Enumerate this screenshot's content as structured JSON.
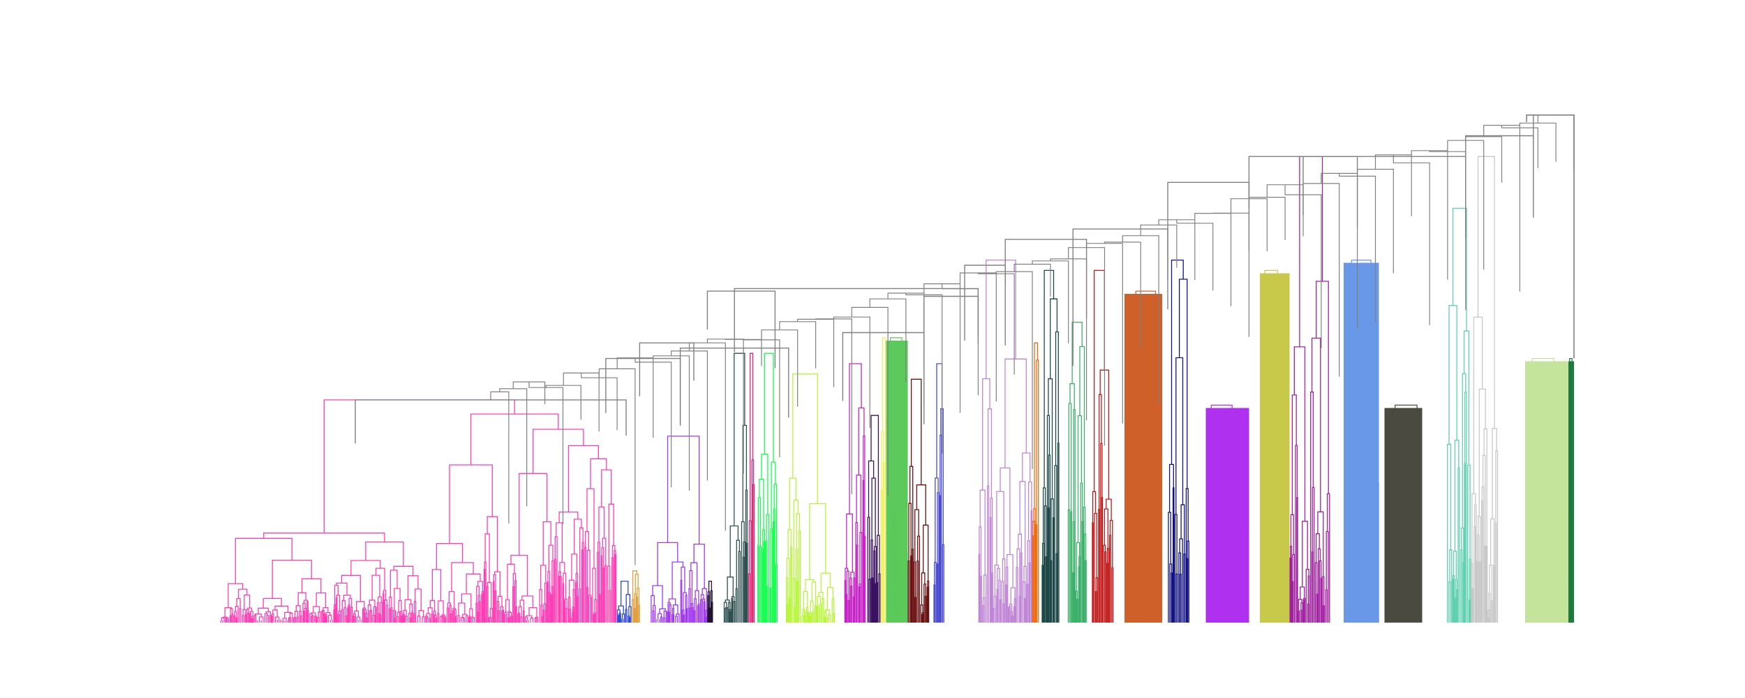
{
  "chart_data": {
    "type": "dendrogram",
    "title": "",
    "xlabel": "",
    "ylabel": "",
    "axes_visible": false,
    "grid": false,
    "leaf_count_estimate": 1200,
    "ylim": [
      0,
      1.0
    ],
    "root_height": 0.98,
    "link_color_default": "#808080",
    "clusters": [
      {
        "name": "cluster-01",
        "color": "#ff3eb5",
        "x_start": 0.0,
        "x_end": 0.293,
        "merge_height": 0.43,
        "style": "tree"
      },
      {
        "name": "cluster-02",
        "color": "#2f49d1",
        "x_start": 0.293,
        "x_end": 0.304,
        "merge_height": 0.08,
        "style": "tree"
      },
      {
        "name": "cluster-03",
        "color": "#e0a040",
        "x_start": 0.304,
        "x_end": 0.31,
        "merge_height": 0.1,
        "style": "tree"
      },
      {
        "name": "cluster-04",
        "color": "#a139f0",
        "x_start": 0.318,
        "x_end": 0.36,
        "merge_height": 0.36,
        "style": "tree"
      },
      {
        "name": "cluster-05",
        "color": "#20142e",
        "x_start": 0.36,
        "x_end": 0.364,
        "merge_height": 0.08,
        "style": "tree"
      },
      {
        "name": "cluster-06",
        "color": "#2f5050",
        "x_start": 0.372,
        "x_end": 0.39,
        "merge_height": 0.52,
        "style": "tree"
      },
      {
        "name": "cluster-07",
        "color": "#e01f70",
        "x_start": 0.39,
        "x_end": 0.395,
        "merge_height": 0.52,
        "style": "tree"
      },
      {
        "name": "cluster-08",
        "color": "#14ff4e",
        "x_start": 0.397,
        "x_end": 0.412,
        "merge_height": 0.52,
        "style": "tree"
      },
      {
        "name": "cluster-09",
        "color": "#b9f53c",
        "x_start": 0.418,
        "x_end": 0.454,
        "merge_height": 0.48,
        "style": "tree"
      },
      {
        "name": "cluster-10",
        "color": "#c624c6",
        "x_start": 0.461,
        "x_end": 0.477,
        "merge_height": 0.5,
        "style": "tree"
      },
      {
        "name": "cluster-11",
        "color": "#3a1060",
        "x_start": 0.478,
        "x_end": 0.488,
        "merge_height": 0.4,
        "style": "tree"
      },
      {
        "name": "cluster-12",
        "color": "#f0f05a",
        "x_start": 0.488,
        "x_end": 0.492,
        "merge_height": 0.55,
        "style": "tree"
      },
      {
        "name": "cluster-13",
        "color": "#5bc95b",
        "x_start": 0.492,
        "x_end": 0.508,
        "merge_height": 0.55,
        "style": "dense"
      },
      {
        "name": "cluster-14",
        "color": "#6b1010",
        "x_start": 0.508,
        "x_end": 0.524,
        "merge_height": 0.47,
        "style": "tree"
      },
      {
        "name": "cluster-15",
        "color": "#4a4ad0",
        "x_start": 0.527,
        "x_end": 0.535,
        "merge_height": 0.5,
        "style": "tree"
      },
      {
        "name": "cluster-16",
        "color": "#bf86d6",
        "x_start": 0.56,
        "x_end": 0.6,
        "merge_height": 0.7,
        "style": "tree"
      },
      {
        "name": "cluster-17",
        "color": "#f06a10",
        "x_start": 0.6,
        "x_end": 0.605,
        "merge_height": 0.54,
        "style": "tree"
      },
      {
        "name": "cluster-18",
        "color": "#1e4848",
        "x_start": 0.607,
        "x_end": 0.62,
        "merge_height": 0.68,
        "style": "tree"
      },
      {
        "name": "cluster-19",
        "color": "#3cb06a",
        "x_start": 0.626,
        "x_end": 0.64,
        "merge_height": 0.58,
        "style": "tree"
      },
      {
        "name": "cluster-20",
        "color": "#c01818",
        "x_start": 0.644,
        "x_end": 0.66,
        "merge_height": 0.68,
        "style": "tree"
      },
      {
        "name": "cluster-21",
        "color": "#d0602a",
        "x_start": 0.668,
        "x_end": 0.696,
        "merge_height": 0.64,
        "style": "dense"
      },
      {
        "name": "cluster-22",
        "color": "#101080",
        "x_start": 0.7,
        "x_end": 0.716,
        "merge_height": 0.7,
        "style": "tree"
      },
      {
        "name": "cluster-23",
        "color": "#b030f0",
        "x_start": 0.728,
        "x_end": 0.76,
        "merge_height": 0.42,
        "style": "dense"
      },
      {
        "name": "cluster-24",
        "color": "#c8c84a",
        "x_start": 0.768,
        "x_end": 0.79,
        "merge_height": 0.68,
        "style": "dense"
      },
      {
        "name": "cluster-25",
        "color": "#a020a0",
        "x_start": 0.79,
        "x_end": 0.82,
        "merge_height": 0.9,
        "style": "tree"
      },
      {
        "name": "cluster-26",
        "color": "#6a98e8",
        "x_start": 0.83,
        "x_end": 0.856,
        "merge_height": 0.7,
        "style": "dense"
      },
      {
        "name": "cluster-27",
        "color": "#4a4a40",
        "x_start": 0.86,
        "x_end": 0.888,
        "merge_height": 0.42,
        "style": "dense"
      },
      {
        "name": "cluster-28",
        "color": "#60d0b0",
        "x_start": 0.906,
        "x_end": 0.924,
        "merge_height": 0.8,
        "style": "tree"
      },
      {
        "name": "cluster-29",
        "color": "#c8c8c8",
        "x_start": 0.924,
        "x_end": 0.944,
        "merge_height": 0.9,
        "style": "tree"
      },
      {
        "name": "cluster-30",
        "color": "#c3e49a",
        "x_start": 0.964,
        "x_end": 0.996,
        "merge_height": 0.51,
        "style": "dense"
      },
      {
        "name": "cluster-31",
        "color": "#1f7a40",
        "x_start": 0.996,
        "x_end": 1.0,
        "merge_height": 0.51,
        "style": "dense"
      }
    ],
    "upper_merges": [
      {
        "x_left": 0.1,
        "x_right": 0.3,
        "height": 0.43
      },
      {
        "x_left": 0.285,
        "x_right": 0.34,
        "height": 0.51
      },
      {
        "x_left": 0.31,
        "x_right": 0.35,
        "height": 0.54
      },
      {
        "x_left": 0.34,
        "x_right": 0.42,
        "height": 0.53
      },
      {
        "x_left": 0.36,
        "x_right": 0.41,
        "height": 0.64
      },
      {
        "x_left": 0.38,
        "x_right": 0.56,
        "height": 0.645
      },
      {
        "x_left": 0.46,
        "x_right": 0.52,
        "height": 0.56
      },
      {
        "x_left": 0.52,
        "x_right": 0.56,
        "height": 0.63
      },
      {
        "x_left": 0.55,
        "x_right": 0.58,
        "height": 0.69
      },
      {
        "x_left": 0.58,
        "x_right": 0.64,
        "height": 0.74
      },
      {
        "x_left": 0.63,
        "x_right": 0.7,
        "height": 0.76
      },
      {
        "x_left": 0.7,
        "x_right": 0.76,
        "height": 0.85
      },
      {
        "x_left": 0.76,
        "x_right": 0.84,
        "height": 0.9
      },
      {
        "x_left": 0.8,
        "x_right": 0.92,
        "height": 0.9
      },
      {
        "x_left": 0.92,
        "x_right": 0.97,
        "height": 0.94
      },
      {
        "x_left": 0.97,
        "x_right": 1.0,
        "height": 0.98
      }
    ]
  }
}
